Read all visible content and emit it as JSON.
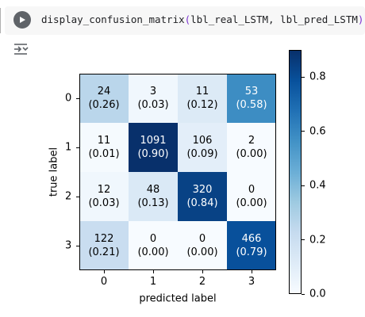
{
  "cell": {
    "code_name": "display_confusion_matrix",
    "code_open": "(",
    "code_args": "lbl_real_LSTM, lbl_pred_LSTM",
    "code_close": ")"
  },
  "icons": {
    "run": "play-circle-icon",
    "output_options": "output-collapse-icon"
  },
  "colors": {
    "cmap_low": "#f7fbff",
    "cmap_high": "#08306b"
  },
  "chart_data": {
    "type": "heatmap",
    "xlabel": "predicted label",
    "ylabel": "true label",
    "x_ticks": [
      "0",
      "1",
      "2",
      "3"
    ],
    "y_ticks": [
      "0",
      "1",
      "2",
      "3"
    ],
    "counts": [
      [
        24,
        3,
        11,
        53
      ],
      [
        11,
        1091,
        106,
        2
      ],
      [
        12,
        48,
        320,
        0
      ],
      [
        122,
        0,
        0,
        466
      ]
    ],
    "ratios": [
      [
        "0.26",
        "0.03",
        "0.12",
        "0.58"
      ],
      [
        "0.01",
        "0.90",
        "0.09",
        "0.00"
      ],
      [
        "0.03",
        "0.13",
        "0.84",
        "0.00"
      ],
      [
        "0.21",
        "0.00",
        "0.00",
        "0.79"
      ]
    ],
    "colorbar": {
      "cmap": "Blues",
      "range": [
        0,
        0.9
      ],
      "ticks": [
        "0.0",
        "0.2",
        "0.4",
        "0.6",
        "0.8"
      ]
    }
  }
}
